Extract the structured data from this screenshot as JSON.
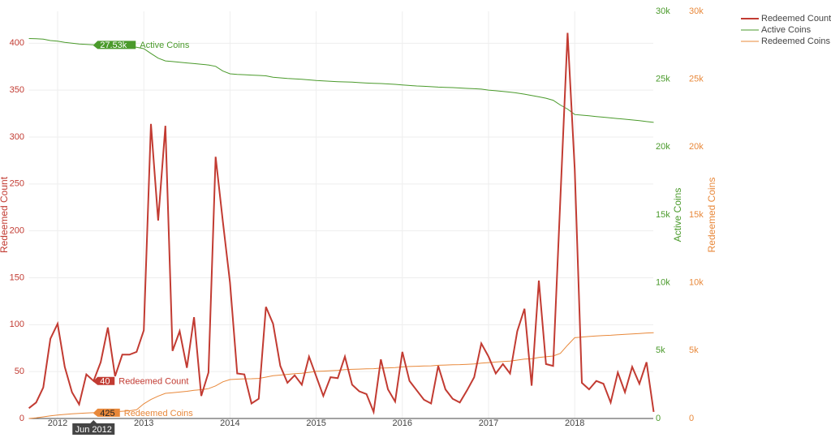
{
  "chart_data": {
    "type": "line",
    "x": [
      "Sep 2011",
      "Oct 2011",
      "Nov 2011",
      "Dec 2011",
      "Jan 2012",
      "Feb 2012",
      "Mar 2012",
      "Apr 2012",
      "May 2012",
      "Jun 2012",
      "Jul 2012",
      "Aug 2012",
      "Sep 2012",
      "Oct 2012",
      "Nov 2012",
      "Dec 2012",
      "Jan 2013",
      "Feb 2013",
      "Mar 2013",
      "Apr 2013",
      "May 2013",
      "Jun 2013",
      "Jul 2013",
      "Aug 2013",
      "Sep 2013",
      "Oct 2013",
      "Nov 2013",
      "Dec 2013",
      "Jan 2014",
      "Feb 2014",
      "Mar 2014",
      "Apr 2014",
      "May 2014",
      "Jun 2014",
      "Jul 2014",
      "Aug 2014",
      "Sep 2014",
      "Oct 2014",
      "Nov 2014",
      "Dec 2014",
      "Jan 2015",
      "Feb 2015",
      "Mar 2015",
      "Apr 2015",
      "May 2015",
      "Jun 2015",
      "Jul 2015",
      "Aug 2015",
      "Sep 2015",
      "Oct 2015",
      "Nov 2015",
      "Dec 2015",
      "Jan 2016",
      "Feb 2016",
      "Mar 2016",
      "Apr 2016",
      "May 2016",
      "Jun 2016",
      "Jul 2016",
      "Aug 2016",
      "Sep 2016",
      "Oct 2016",
      "Nov 2016",
      "Dec 2016",
      "Jan 2017",
      "Feb 2017",
      "Mar 2017",
      "Apr 2017",
      "May 2017",
      "Jun 2017",
      "Jul 2017",
      "Aug 2017",
      "Sep 2017",
      "Oct 2017",
      "Nov 2017",
      "Dec 2017",
      "Jan 2018",
      "Feb 2018",
      "Mar 2018",
      "Apr 2018",
      "May 2018",
      "Jun 2018",
      "Jul 2018",
      "Aug 2018",
      "Sep 2018",
      "Oct 2018",
      "Nov 2018",
      "Dec 2018"
    ],
    "xticks": [
      {
        "value": "Jan 2012",
        "label": "2012"
      },
      {
        "value": "Jan 2013",
        "label": "2013"
      },
      {
        "value": "Jan 2014",
        "label": "2014"
      },
      {
        "value": "Jan 2015",
        "label": "2015"
      },
      {
        "value": "Jan 2016",
        "label": "2016"
      },
      {
        "value": "Jan 2017",
        "label": "2017"
      },
      {
        "value": "Jan 2018",
        "label": "2018"
      }
    ],
    "ylabel": "Redeemed Count",
    "y2label": "Active Coins",
    "y3label": "Redeemed Coins",
    "ylim": [
      0,
      434
    ],
    "yticks": [
      0,
      50,
      100,
      150,
      200,
      250,
      300,
      350,
      400
    ],
    "y2lim": [
      0,
      30000
    ],
    "y2ticks": [
      0,
      {
        "value": 5000,
        "label": "5k"
      },
      {
        "value": 10000,
        "label": "10k"
      },
      {
        "value": 15000,
        "label": "15k"
      },
      {
        "value": 20000,
        "label": "20k"
      },
      {
        "value": 25000,
        "label": "25k"
      },
      {
        "value": 30000,
        "label": "30k"
      }
    ],
    "y3lim": [
      0,
      30000
    ],
    "y3ticks": [
      0,
      {
        "value": 5000,
        "label": "5k"
      },
      {
        "value": 10000,
        "label": "10k"
      },
      {
        "value": 15000,
        "label": "15k"
      },
      {
        "value": 20000,
        "label": "20k"
      },
      {
        "value": 25000,
        "label": "25k"
      },
      {
        "value": 30000,
        "label": "30k"
      }
    ],
    "grid": true,
    "legend": "top-right",
    "series": [
      {
        "name": "Redeemed Count",
        "color": "#c23b32",
        "axis": "y",
        "values": [
          11,
          17,
          33,
          85,
          101,
          55,
          28,
          15,
          47,
          40,
          60,
          97,
          45,
          68,
          68,
          71,
          94,
          314,
          211,
          312,
          72,
          93,
          54,
          108,
          24,
          49,
          279,
          210,
          145,
          48,
          47,
          16,
          21,
          119,
          101,
          56,
          38,
          46,
          36,
          66,
          45,
          24,
          44,
          43,
          66,
          36,
          29,
          26,
          7,
          63,
          31,
          18,
          71,
          40,
          30,
          20,
          16,
          56,
          31,
          21,
          17,
          30,
          44,
          80,
          66,
          48,
          58,
          48,
          93,
          117,
          35,
          147,
          58,
          56,
          234,
          411,
          266,
          38,
          31,
          40,
          37,
          17,
          49,
          28,
          55,
          37,
          60,
          7
        ]
      },
      {
        "name": "Active Coins",
        "color": "#4a9a2b",
        "axis": "y2",
        "values": [
          28000,
          27980,
          27950,
          27850,
          27800,
          27720,
          27650,
          27600,
          27560,
          27530,
          27500,
          27480,
          27450,
          27420,
          27380,
          27350,
          27250,
          26900,
          26550,
          26350,
          26300,
          26250,
          26200,
          26150,
          26100,
          26050,
          25950,
          25600,
          25400,
          25350,
          25330,
          25300,
          25280,
          25250,
          25150,
          25100,
          25050,
          25020,
          25000,
          24950,
          24900,
          24870,
          24850,
          24820,
          24800,
          24780,
          24750,
          24720,
          24700,
          24680,
          24650,
          24620,
          24580,
          24540,
          24500,
          24480,
          24450,
          24420,
          24400,
          24380,
          24350,
          24320,
          24300,
          24270,
          24200,
          24150,
          24100,
          24050,
          23980,
          23900,
          23800,
          23700,
          23600,
          23450,
          23100,
          22800,
          22400,
          22350,
          22300,
          22250,
          22200,
          22150,
          22100,
          22050,
          22000,
          21950,
          21880,
          21820
        ]
      },
      {
        "name": "Redeemed Coins",
        "color": "#e8883a",
        "axis": "y3",
        "values": [
          0,
          50,
          120,
          200,
          250,
          300,
          340,
          370,
          400,
          425,
          450,
          470,
          500,
          530,
          570,
          640,
          1080,
          1400,
          1650,
          1850,
          1900,
          1950,
          2000,
          2080,
          2120,
          2200,
          2400,
          2700,
          2870,
          2900,
          2920,
          2930,
          2950,
          3050,
          3150,
          3200,
          3250,
          3300,
          3330,
          3400,
          3470,
          3490,
          3520,
          3550,
          3600,
          3620,
          3640,
          3660,
          3670,
          3710,
          3730,
          3750,
          3800,
          3830,
          3850,
          3870,
          3880,
          3920,
          3940,
          3960,
          3970,
          3990,
          4020,
          4080,
          4120,
          4160,
          4200,
          4230,
          4300,
          4380,
          4400,
          4500,
          4550,
          4600,
          4800,
          5400,
          5950,
          6000,
          6040,
          6080,
          6110,
          6130,
          6170,
          6200,
          6230,
          6260,
          6300,
          6320
        ]
      }
    ],
    "hover": {
      "x": "Jun 2012",
      "labels": [
        "40",
        "27.53k",
        "425"
      ]
    }
  }
}
